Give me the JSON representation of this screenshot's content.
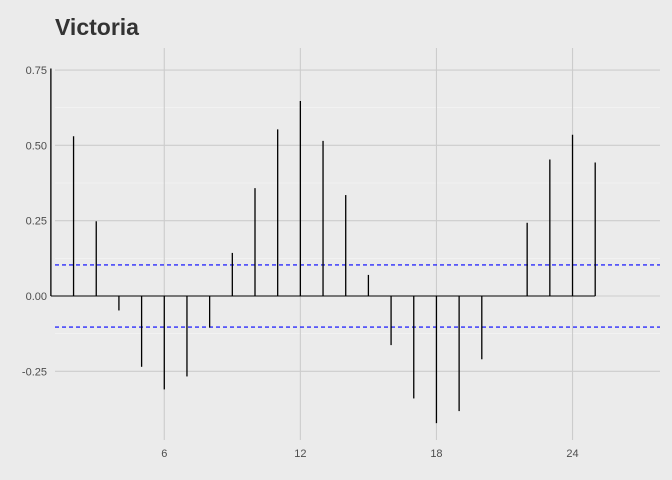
{
  "chart_data": {
    "type": "acf",
    "title": "Victoria",
    "xlabel": "",
    "ylabel": "",
    "x_ticks": [
      6,
      12,
      18,
      24
    ],
    "x_tick_labels": [
      "6",
      "12",
      "18",
      "24"
    ],
    "y_ticks": [
      0.75,
      0.5,
      0.25,
      0.0,
      -0.25
    ],
    "y_tick_labels": [
      "0.75",
      "0.50",
      "0.25",
      "0.00",
      "-0.25"
    ],
    "xlim": [
      0,
      26
    ],
    "ylim": [
      -0.42,
      0.75
    ],
    "lags": [
      1,
      2,
      3,
      4,
      5,
      6,
      7,
      8,
      9,
      10,
      11,
      12,
      13,
      14,
      15,
      16,
      17,
      18,
      19,
      20,
      21,
      22,
      23,
      24,
      25
    ],
    "values": [
      0.755,
      0.53,
      0.248,
      -0.048,
      -0.235,
      -0.31,
      -0.267,
      -0.105,
      0.143,
      0.358,
      0.553,
      0.647,
      0.515,
      0.335,
      0.07,
      -0.163,
      -0.34,
      -0.422,
      -0.382,
      -0.21,
      0.0,
      0.243,
      0.453,
      0.535,
      0.443
    ],
    "confidence_bound": 0.103,
    "grid": true,
    "colors": {
      "background": "#ebebeb",
      "grid": "#cccccc",
      "spike": "#000000",
      "confidence": "#0000ff",
      "title": "#333333",
      "tick_label": "#4d4d4d"
    }
  }
}
